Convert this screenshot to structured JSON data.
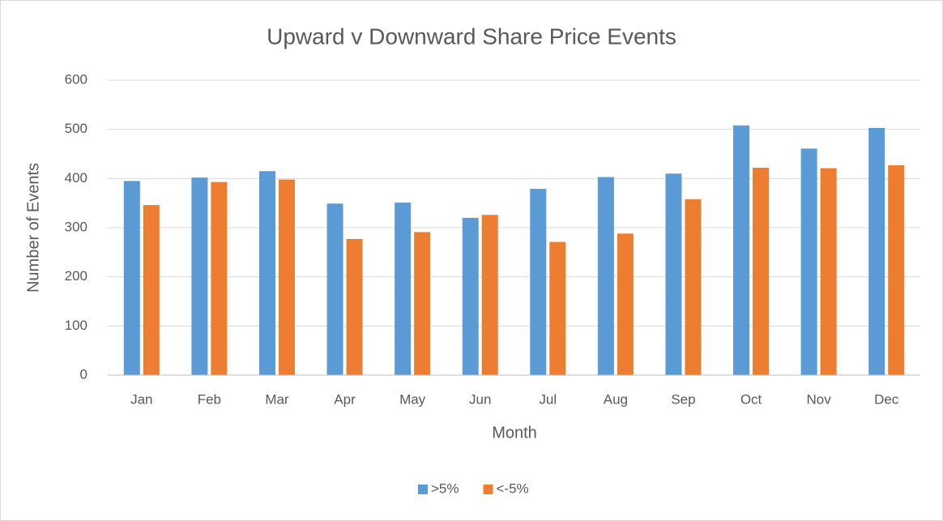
{
  "chart_data": {
    "type": "bar",
    "title": "Upward v Downward Share Price Events",
    "x_label": "Month",
    "y_label": "Number of Events",
    "categories": [
      "Jan",
      "Feb",
      "Mar",
      "Apr",
      "May",
      "Jun",
      "Jul",
      "Aug",
      "Sep",
      "Oct",
      "Nov",
      "Dec"
    ],
    "series": [
      {
        "name": ">5%",
        "color": "#5b9bd5",
        "values": [
          395,
          402,
          415,
          349,
          351,
          320,
          379,
          403,
          410,
          508,
          461,
          503
        ]
      },
      {
        "name": "<-5%",
        "color": "#ed7d31",
        "values": [
          346,
          393,
          398,
          277,
          291,
          326,
          271,
          288,
          358,
          422,
          421,
          427
        ]
      }
    ],
    "ylim": [
      0,
      600
    ],
    "yticks": [
      0,
      100,
      200,
      300,
      400,
      500,
      600
    ],
    "grid": true,
    "legend": "bottom"
  }
}
